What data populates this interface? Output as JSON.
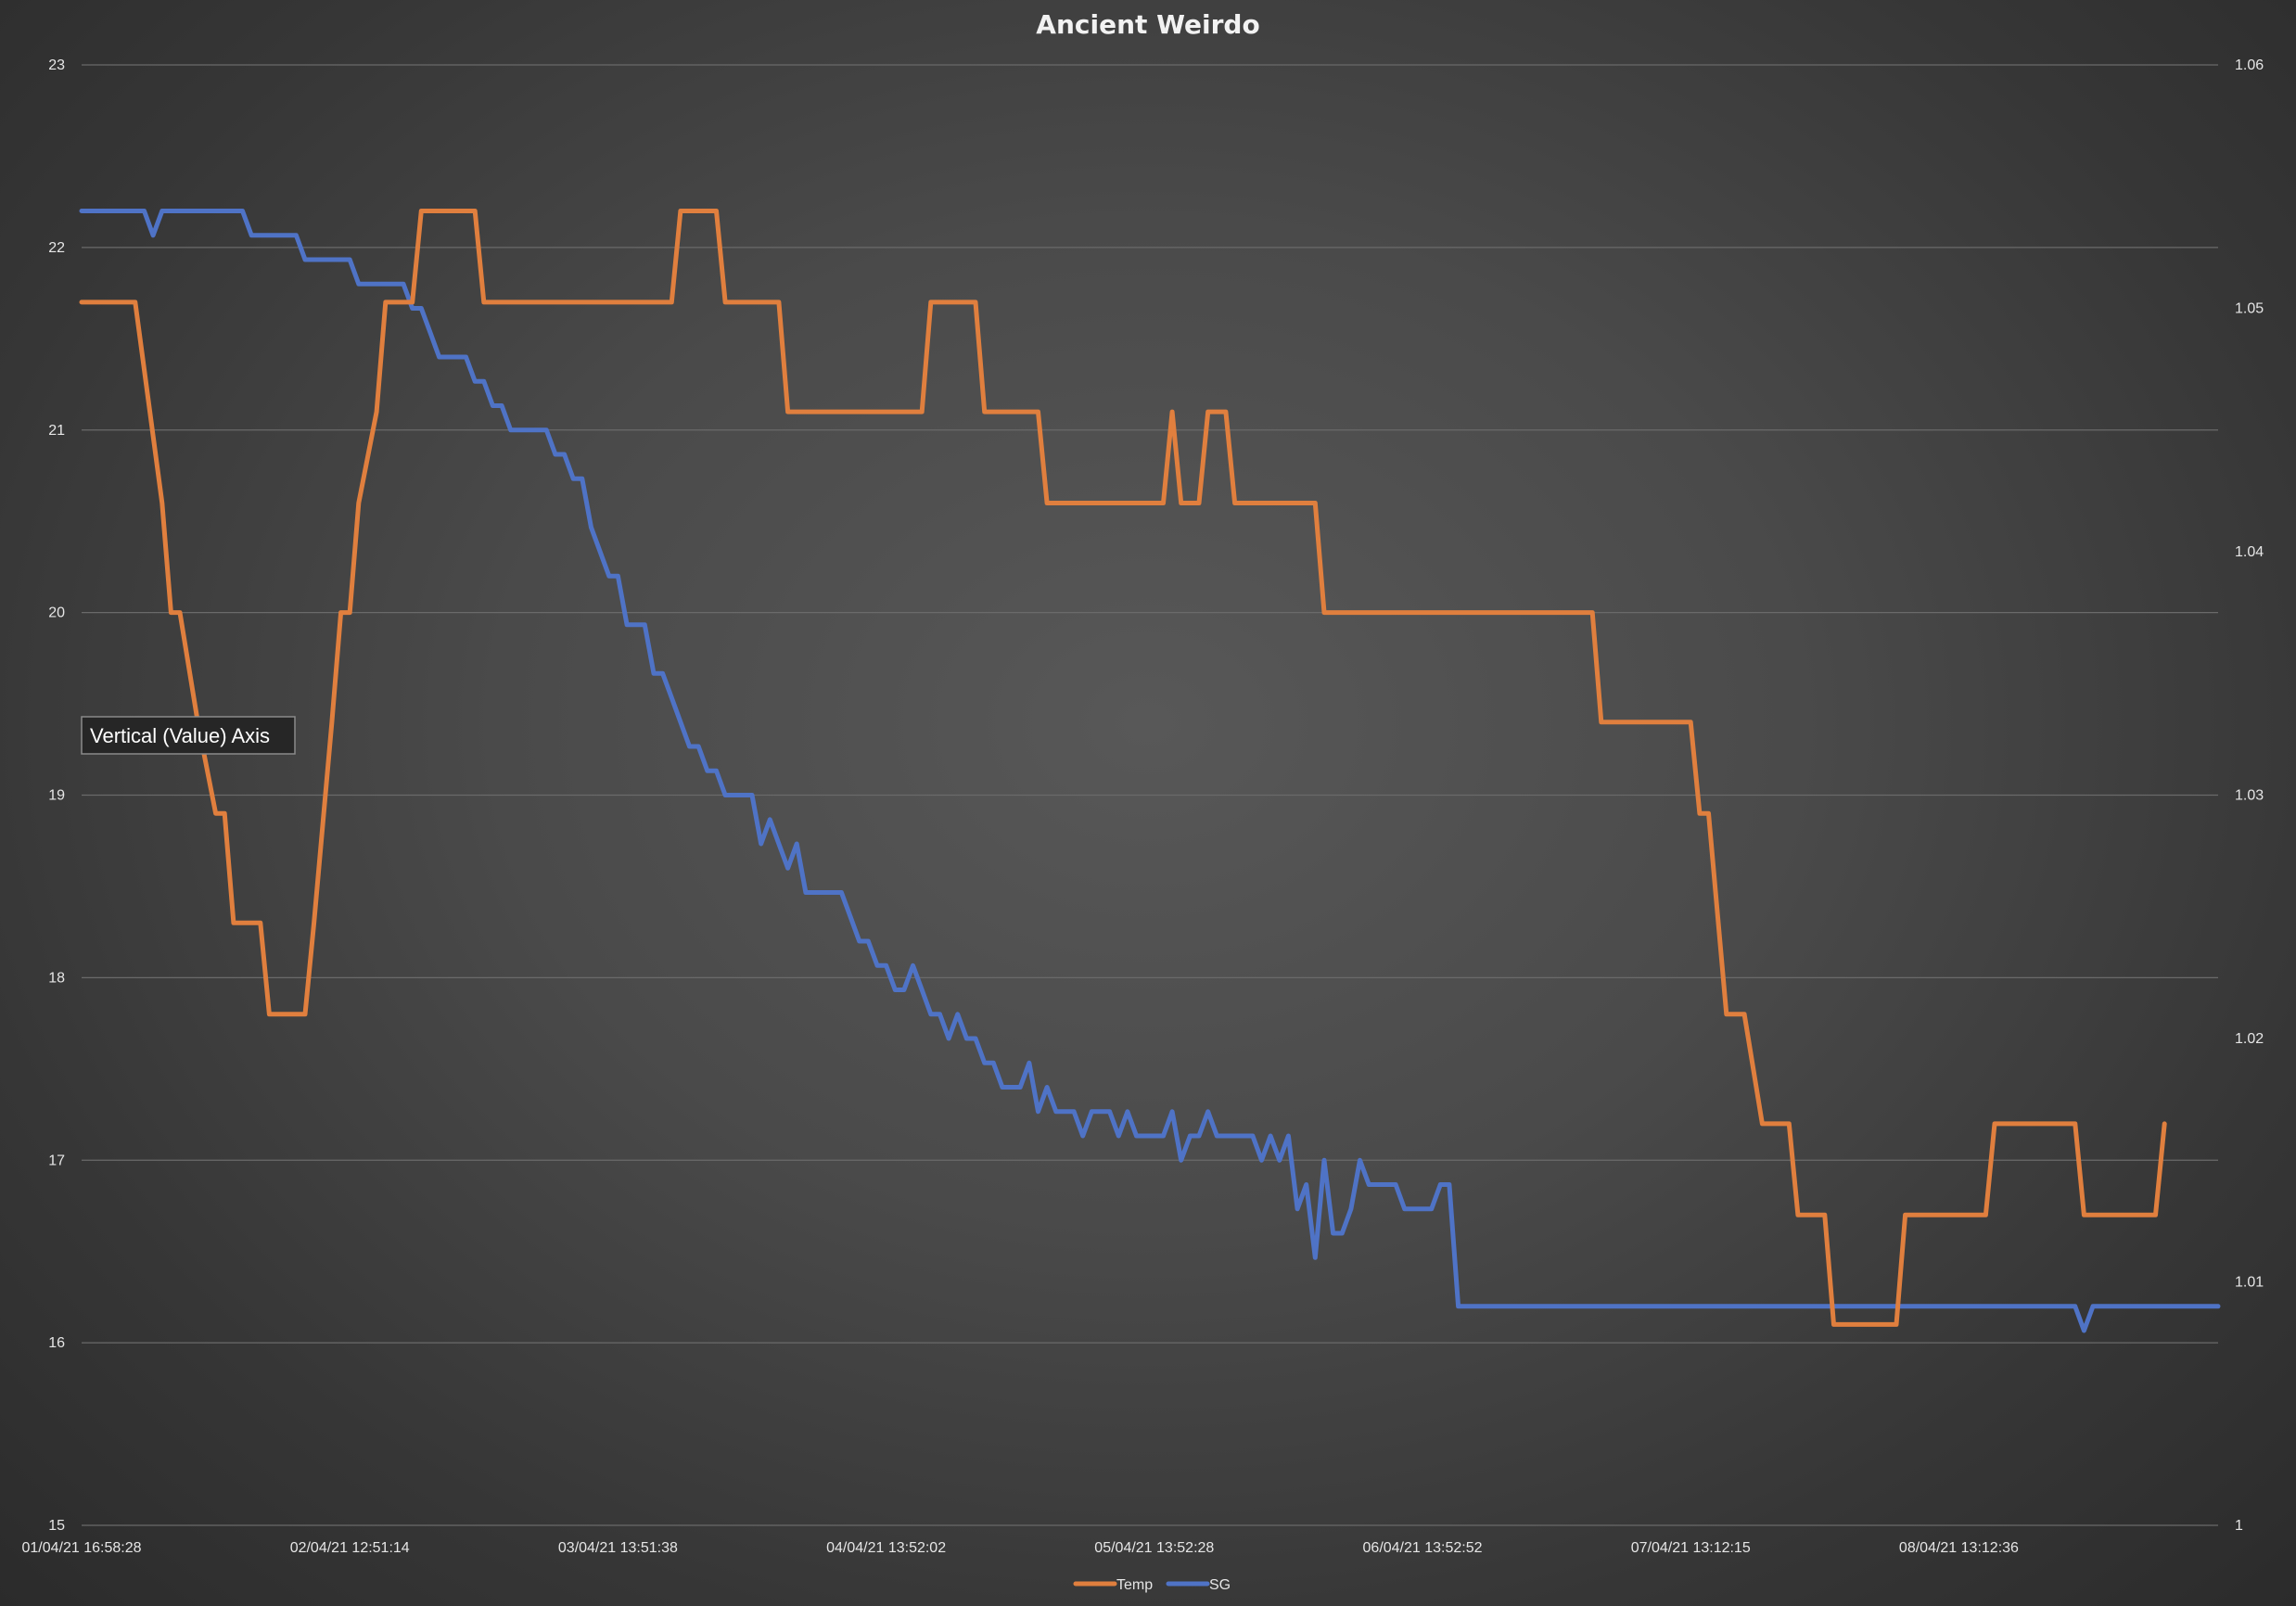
{
  "chart_data": {
    "type": "line",
    "title": "Ancient Weirdo",
    "xlabel": "",
    "ylabel": "",
    "y_left_lim": [
      15,
      23
    ],
    "y_left_ticks": [
      15,
      16,
      17,
      18,
      19,
      20,
      21,
      22,
      23
    ],
    "y_right_lim": [
      1,
      1.06
    ],
    "y_right_ticks": [
      "1",
      "1.01",
      "1.02",
      "1.03",
      "1.04",
      "1.05",
      "1.06"
    ],
    "x_labels": [
      "01/04/21 16:58:28",
      "02/04/21 12:51:14",
      "03/04/21 13:51:38",
      "04/04/21 13:52:02",
      "05/04/21 13:52:28",
      "06/04/21 13:52:52",
      "07/04/21 13:12:15",
      "08/04/21 13:12:36"
    ],
    "x_label_positions": [
      0,
      30,
      60,
      90,
      120,
      150,
      180,
      210
    ],
    "x_count": 240,
    "grid": true,
    "legend_position": "bottom",
    "tooltip": "Vertical (Value) Axis",
    "series": [
      {
        "name": "Temp",
        "axis": "left",
        "color": "#e07f3e",
        "points": [
          [
            0,
            21.7
          ],
          [
            6,
            21.7
          ],
          [
            9,
            20.6
          ],
          [
            10,
            20
          ],
          [
            11,
            20
          ],
          [
            13,
            19.4
          ],
          [
            15,
            18.9
          ],
          [
            16,
            18.9
          ],
          [
            17,
            18.3
          ],
          [
            20,
            18.3
          ],
          [
            21,
            17.8
          ],
          [
            25,
            17.8
          ],
          [
            26,
            18.3
          ],
          [
            28,
            19.4
          ],
          [
            29,
            20
          ],
          [
            30,
            20
          ],
          [
            31,
            20.6
          ],
          [
            33,
            21.1
          ],
          [
            34,
            21.7
          ],
          [
            36,
            21.7
          ],
          [
            37,
            21.7
          ],
          [
            38,
            22.2
          ],
          [
            44,
            22.2
          ],
          [
            45,
            21.7
          ],
          [
            66,
            21.7
          ],
          [
            67,
            22.2
          ],
          [
            71,
            22.2
          ],
          [
            72,
            21.7
          ],
          [
            78,
            21.7
          ],
          [
            79,
            21.1
          ],
          [
            94,
            21.1
          ],
          [
            95,
            21.7
          ],
          [
            100,
            21.7
          ],
          [
            101,
            21.1
          ],
          [
            107,
            21.1
          ],
          [
            108,
            20.6
          ],
          [
            121,
            20.6
          ],
          [
            122,
            21.1
          ],
          [
            123,
            20.6
          ],
          [
            125,
            20.6
          ],
          [
            126,
            21.1
          ],
          [
            128,
            21.1
          ],
          [
            129,
            20.6
          ],
          [
            138,
            20.6
          ],
          [
            139,
            20
          ],
          [
            169,
            20
          ],
          [
            170,
            19.4
          ],
          [
            180,
            19.4
          ],
          [
            181,
            18.9
          ],
          [
            182,
            18.9
          ],
          [
            184,
            17.8
          ],
          [
            186,
            17.8
          ],
          [
            188,
            17.2
          ],
          [
            191,
            17.2
          ],
          [
            192,
            16.7
          ],
          [
            195,
            16.7
          ],
          [
            196,
            16.1
          ],
          [
            203,
            16.1
          ],
          [
            204,
            16.7
          ],
          [
            213,
            16.7
          ],
          [
            214,
            17.2
          ],
          [
            223,
            17.2
          ],
          [
            224,
            16.7
          ],
          [
            232,
            16.7
          ],
          [
            233,
            17.2
          ]
        ]
      },
      {
        "name": "SG",
        "axis": "right",
        "color": "#4f73c6",
        "points": [
          [
            0,
            1.054
          ],
          [
            7,
            1.054
          ],
          [
            8,
            1.053
          ],
          [
            9,
            1.054
          ],
          [
            18,
            1.054
          ],
          [
            19,
            1.053
          ],
          [
            24,
            1.053
          ],
          [
            25,
            1.052
          ],
          [
            30,
            1.052
          ],
          [
            31,
            1.051
          ],
          [
            35,
            1.051
          ],
          [
            36,
            1.051
          ],
          [
            37,
            1.05
          ],
          [
            38,
            1.05
          ],
          [
            39,
            1.049
          ],
          [
            40,
            1.048
          ],
          [
            43,
            1.048
          ],
          [
            44,
            1.047
          ],
          [
            45,
            1.047
          ],
          [
            46,
            1.046
          ],
          [
            47,
            1.046
          ],
          [
            48,
            1.045
          ],
          [
            52,
            1.045
          ],
          [
            53,
            1.044
          ],
          [
            54,
            1.044
          ],
          [
            55,
            1.043
          ],
          [
            56,
            1.043
          ],
          [
            57,
            1.041
          ],
          [
            59,
            1.039
          ],
          [
            60,
            1.039
          ],
          [
            61,
            1.037
          ],
          [
            63,
            1.037
          ],
          [
            64,
            1.035
          ],
          [
            65,
            1.035
          ],
          [
            66,
            1.034
          ],
          [
            68,
            1.032
          ],
          [
            69,
            1.032
          ],
          [
            70,
            1.031
          ],
          [
            71,
            1.031
          ],
          [
            72,
            1.03
          ],
          [
            75,
            1.03
          ],
          [
            76,
            1.028
          ],
          [
            77,
            1.029
          ],
          [
            78,
            1.028
          ],
          [
            79,
            1.027
          ],
          [
            80,
            1.028
          ],
          [
            81,
            1.026
          ],
          [
            85,
            1.026
          ],
          [
            86,
            1.025
          ],
          [
            87,
            1.024
          ],
          [
            88,
            1.024
          ],
          [
            89,
            1.023
          ],
          [
            90,
            1.023
          ],
          [
            91,
            1.022
          ],
          [
            92,
            1.022
          ],
          [
            93,
            1.023
          ],
          [
            94,
            1.022
          ],
          [
            95,
            1.021
          ],
          [
            96,
            1.021
          ],
          [
            97,
            1.02
          ],
          [
            98,
            1.021
          ],
          [
            99,
            1.02
          ],
          [
            100,
            1.02
          ],
          [
            101,
            1.019
          ],
          [
            102,
            1.019
          ],
          [
            103,
            1.018
          ],
          [
            105,
            1.018
          ],
          [
            106,
            1.019
          ],
          [
            107,
            1.017
          ],
          [
            108,
            1.018
          ],
          [
            109,
            1.017
          ],
          [
            111,
            1.017
          ],
          [
            112,
            1.016
          ],
          [
            113,
            1.017
          ],
          [
            115,
            1.017
          ],
          [
            116,
            1.016
          ],
          [
            117,
            1.017
          ],
          [
            118,
            1.016
          ],
          [
            121,
            1.016
          ],
          [
            122,
            1.017
          ],
          [
            123,
            1.015
          ],
          [
            124,
            1.016
          ],
          [
            125,
            1.016
          ],
          [
            126,
            1.017
          ],
          [
            127,
            1.016
          ],
          [
            131,
            1.016
          ],
          [
            132,
            1.015
          ],
          [
            133,
            1.016
          ],
          [
            134,
            1.015
          ],
          [
            135,
            1.016
          ],
          [
            136,
            1.013
          ],
          [
            137,
            1.014
          ],
          [
            138,
            1.011
          ],
          [
            139,
            1.015
          ],
          [
            140,
            1.012
          ],
          [
            141,
            1.012
          ],
          [
            142,
            1.013
          ],
          [
            143,
            1.015
          ],
          [
            144,
            1.014
          ],
          [
            147,
            1.014
          ],
          [
            148,
            1.013
          ],
          [
            151,
            1.013
          ],
          [
            152,
            1.014
          ],
          [
            153,
            1.014
          ],
          [
            154,
            1.009
          ],
          [
            162,
            1.009
          ],
          [
            223,
            1.009
          ],
          [
            224,
            1.008
          ],
          [
            225,
            1.009
          ],
          [
            239,
            1.009
          ]
        ]
      }
    ]
  }
}
